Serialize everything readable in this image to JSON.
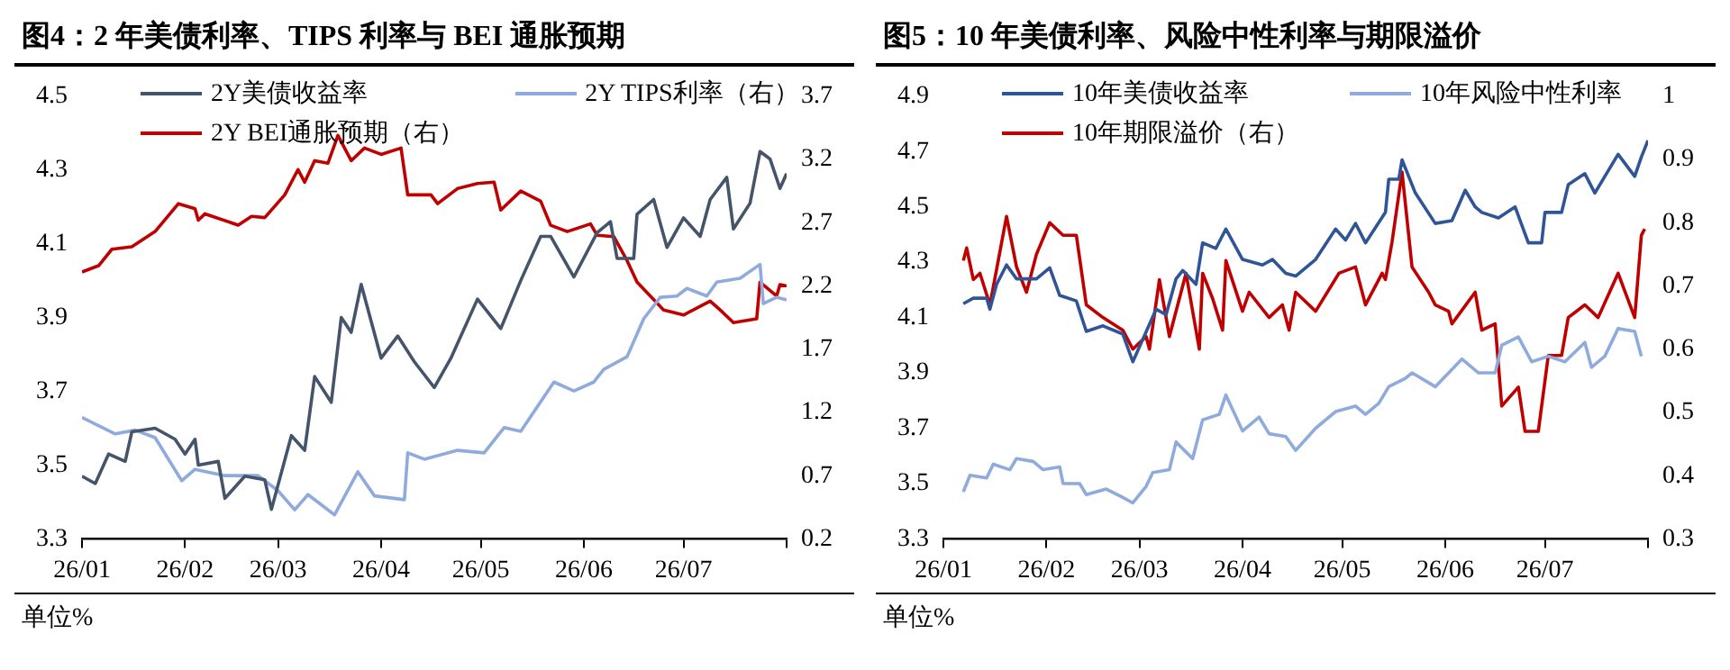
{
  "chart_data": [
    {
      "type": "line",
      "title": "图4：2 年美债利率、TIPS 利率与 BEI 通胀预期",
      "annotations": [
        "单位%"
      ],
      "legend": "top left",
      "xlim": [
        "--01-01",
        "--08-01"
      ],
      "xticks": [
        {
          "value": "--01-01",
          "label": "26/01"
        },
        {
          "value": "--02-01",
          "label": "26/02"
        },
        {
          "value": "--03-01",
          "label": "26/03"
        },
        {
          "value": "--04-01",
          "label": "26/04"
        },
        {
          "value": "--05-01",
          "label": "26/05"
        },
        {
          "value": "--06-01",
          "label": "26/06"
        },
        {
          "value": "--07-01",
          "label": "26/07"
        },
        {
          "value": "--08-01",
          "label": null
        }
      ],
      "ylim": [
        3.3,
        4.5
      ],
      "yticks": [
        3.3,
        3.5,
        3.7,
        3.9,
        4.1,
        4.3,
        4.5
      ],
      "y2lim": [
        0.2,
        3.7
      ],
      "y2ticks": [
        0.2,
        0.7,
        1.2,
        1.7,
        2.2,
        2.7,
        3.2,
        3.7
      ],
      "series": [
        {
          "name": "2Y美债收益率",
          "color": "#44546a",
          "x": [
            "--01-01",
            "--01-05",
            "--01-09",
            "--01-14",
            "--01-16",
            "--01-23",
            "--01-29",
            "--02-01",
            "--02-04",
            "--02-05",
            "--02-11",
            "--02-13",
            "--02-19",
            "--02-25",
            "--02-27",
            "--03-05",
            "--03-09",
            "--03-12",
            "--03-17",
            "--03-20",
            "--03-23",
            "--03-26",
            "--04-01",
            "--04-06",
            "--04-11",
            "--04-17",
            "--04-22",
            "--04-30",
            "--05-07",
            "--05-13",
            "--05-19",
            "--05-22",
            "--05-29",
            "--06-05",
            "--06-09",
            "--06-11",
            "--06-16",
            "--06-17",
            "--06-22",
            "--06-26",
            "--07-01",
            "--07-06",
            "--07-09",
            "--07-14",
            "--07-16",
            "--07-21",
            "--07-24",
            "--07-27",
            "--07-30",
            "--08-01"
          ],
          "values": [
            3.47,
            3.45,
            3.53,
            3.51,
            3.59,
            3.6,
            3.57,
            3.53,
            3.57,
            3.5,
            3.51,
            3.41,
            3.47,
            3.46,
            3.38,
            3.58,
            3.54,
            3.74,
            3.67,
            3.9,
            3.86,
            3.99,
            3.79,
            3.85,
            3.78,
            3.71,
            3.79,
            3.95,
            3.87,
            4.0,
            4.12,
            4.12,
            4.01,
            4.13,
            4.16,
            4.06,
            4.06,
            4.18,
            4.22,
            4.09,
            4.17,
            4.12,
            4.22,
            4.28,
            4.14,
            4.21,
            4.35,
            4.33,
            4.25,
            4.29
          ]
        },
        {
          "name": "2Y TIPS利率（右）",
          "color": "#8faadc",
          "axis": "y2",
          "x": [
            "--01-01",
            "--01-11",
            "--01-17",
            "--01-23",
            "--01-31",
            "--02-04",
            "--02-13",
            "--02-23",
            "--03-01",
            "--03-06",
            "--03-10",
            "--03-18",
            "--03-25",
            "--03-30",
            "--04-08",
            "--04-09",
            "--04-14",
            "--04-24",
            "--05-02",
            "--05-08",
            "--05-13",
            "--05-23",
            "--05-29",
            "--06-04",
            "--06-07",
            "--06-14",
            "--06-19",
            "--06-24",
            "--06-29",
            "--07-02",
            "--07-08",
            "--07-11",
            "--07-18",
            "--07-24",
            "--07-25",
            "--07-29",
            "--08-01"
          ],
          "values": [
            1.16,
            1.03,
            1.06,
            1.0,
            0.66,
            0.75,
            0.7,
            0.7,
            0.58,
            0.43,
            0.55,
            0.39,
            0.73,
            0.54,
            0.51,
            0.88,
            0.83,
            0.9,
            0.88,
            1.08,
            1.05,
            1.44,
            1.37,
            1.44,
            1.54,
            1.64,
            1.94,
            2.11,
            2.12,
            2.18,
            2.12,
            2.23,
            2.26,
            2.37,
            2.06,
            2.11,
            2.09
          ]
        },
        {
          "name": "2Y BEI通胀预期（右）",
          "color": "#c00000",
          "axis": "y2",
          "x": [
            "--01-01",
            "--01-06",
            "--01-10",
            "--01-16",
            "--01-23",
            "--01-30",
            "--02-04",
            "--02-05",
            "--02-07",
            "--02-17",
            "--02-21",
            "--02-25",
            "--03-03",
            "--03-07",
            "--03-09",
            "--03-12",
            "--03-16",
            "--03-19",
            "--03-23",
            "--03-27",
            "--04-01",
            "--04-07",
            "--04-09",
            "--04-16",
            "--04-18",
            "--04-24",
            "--04-30",
            "--05-05",
            "--05-07",
            "--05-13",
            "--05-19",
            "--05-22",
            "--05-27",
            "--06-03",
            "--06-05",
            "--06-10",
            "--06-14",
            "--06-17",
            "--06-25",
            "--07-01",
            "--07-09",
            "--07-12",
            "--07-16",
            "--07-23",
            "--07-24",
            "--07-29",
            "--07-30",
            "--08-01"
          ],
          "values": [
            2.31,
            2.36,
            2.49,
            2.51,
            2.63,
            2.85,
            2.81,
            2.72,
            2.77,
            2.68,
            2.75,
            2.74,
            2.92,
            3.12,
            3.02,
            3.19,
            3.17,
            3.39,
            3.19,
            3.29,
            3.24,
            3.29,
            2.92,
            2.92,
            2.85,
            2.97,
            3.01,
            3.02,
            2.8,
            2.95,
            2.87,
            2.68,
            2.63,
            2.69,
            2.6,
            2.59,
            2.4,
            2.23,
            2.01,
            1.97,
            2.08,
            2.01,
            1.91,
            1.94,
            2.23,
            2.12,
            2.21,
            2.2
          ]
        }
      ]
    },
    {
      "type": "line",
      "title": "图5：10 年美债利率、风险中性利率与期限溢价",
      "annotations": [
        "单位%"
      ],
      "legend": "top left",
      "xlim": [
        "--01-01",
        "--08-01"
      ],
      "xticks": [
        {
          "value": "--01-01",
          "label": "26/01"
        },
        {
          "value": "--02-01",
          "label": "26/02"
        },
        {
          "value": "--03-01",
          "label": "26/03"
        },
        {
          "value": "--04-01",
          "label": "26/04"
        },
        {
          "value": "--05-01",
          "label": "26/05"
        },
        {
          "value": "--06-01",
          "label": "26/06"
        },
        {
          "value": "--07-01",
          "label": "26/07"
        },
        {
          "value": "--08-01",
          "label": null
        }
      ],
      "ylim": [
        3.3,
        4.9
      ],
      "yticks": [
        3.3,
        3.5,
        3.7,
        3.9,
        4.1,
        4.3,
        4.5,
        4.7,
        4.9
      ],
      "y2lim": [
        0.3,
        1
      ],
      "y2ticks": [
        0.3,
        0.4,
        0.5,
        0.6,
        0.7,
        0.8,
        0.9,
        1
      ],
      "series": [
        {
          "name": "10年美债收益率",
          "color": "#2f5597",
          "x": [
            "--01-07",
            "--01-10",
            "--01-14",
            "--01-15",
            "--01-17",
            "--01-20",
            "--01-23",
            "--01-26",
            "--01-29",
            "--02-02",
            "--02-05",
            "--02-10",
            "--02-13",
            "--02-18",
            "--02-24",
            "--02-27",
            "--03-06",
            "--03-09",
            "--03-12",
            "--03-14",
            "--03-18",
            "--03-20",
            "--03-24",
            "--03-27",
            "--04-01",
            "--04-07",
            "--04-10",
            "--04-14",
            "--04-17",
            "--04-23",
            "--04-29",
            "--05-02",
            "--05-05",
            "--05-08",
            "--05-14",
            "--05-15",
            "--05-18",
            "--05-19",
            "--05-23",
            "--05-29",
            "--06-03",
            "--06-07",
            "--06-10",
            "--06-12",
            "--06-17",
            "--06-22",
            "--06-26",
            "--06-30",
            "--07-01",
            "--07-06",
            "--07-08",
            "--07-13",
            "--07-16",
            "--07-23",
            "--07-28",
            "--07-30",
            "--08-01"
          ],
          "values": [
            4.15,
            4.17,
            4.17,
            4.13,
            4.22,
            4.29,
            4.24,
            4.24,
            4.24,
            4.28,
            4.18,
            4.16,
            4.05,
            4.07,
            4.04,
            3.94,
            4.13,
            4.11,
            4.24,
            4.27,
            4.22,
            4.37,
            4.35,
            4.42,
            4.31,
            4.29,
            4.31,
            4.26,
            4.25,
            4.31,
            4.42,
            4.38,
            4.44,
            4.37,
            4.48,
            4.6,
            4.6,
            4.67,
            4.55,
            4.44,
            4.45,
            4.56,
            4.5,
            4.48,
            4.46,
            4.5,
            4.37,
            4.37,
            4.48,
            4.48,
            4.58,
            4.62,
            4.55,
            4.69,
            4.61,
            4.68,
            4.74
          ]
        },
        {
          "name": "10年风险中性利率",
          "color": "#8faadc",
          "x": [
            "--01-07",
            "--01-09",
            "--01-14",
            "--01-16",
            "--01-21",
            "--01-23",
            "--01-28",
            "--01-31",
            "--02-05",
            "--02-06",
            "--02-11",
            "--02-13",
            "--02-19",
            "--02-24",
            "--02-27",
            "--03-03",
            "--03-05",
            "--03-10",
            "--03-12",
            "--03-17",
            "--03-20",
            "--03-25",
            "--03-27",
            "--04-01",
            "--04-06",
            "--04-09",
            "--04-14",
            "--04-17",
            "--04-23",
            "--04-29",
            "--05-05",
            "--05-08",
            "--05-12",
            "--05-15",
            "--05-20",
            "--05-22",
            "--05-29",
            "--06-06",
            "--06-11",
            "--06-16",
            "--06-18",
            "--06-23",
            "--06-27",
            "--07-02",
            "--07-07",
            "--07-13",
            "--07-15",
            "--07-19",
            "--07-23",
            "--07-28",
            "--07-30"
          ],
          "values": [
            3.47,
            3.53,
            3.52,
            3.57,
            3.55,
            3.59,
            3.58,
            3.55,
            3.56,
            3.5,
            3.5,
            3.46,
            3.48,
            3.45,
            3.43,
            3.49,
            3.54,
            3.55,
            3.65,
            3.59,
            3.73,
            3.75,
            3.82,
            3.69,
            3.74,
            3.68,
            3.67,
            3.62,
            3.7,
            3.76,
            3.78,
            3.75,
            3.79,
            3.85,
            3.88,
            3.9,
            3.85,
            3.95,
            3.9,
            3.9,
            4.0,
            4.03,
            3.94,
            3.96,
            3.94,
            4.01,
            3.92,
            3.96,
            4.06,
            4.05,
            3.96
          ]
        },
        {
          "name": "10年期限溢价（右）",
          "color": "#c00000",
          "axis": "y2",
          "x": [
            "--01-07",
            "--01-08",
            "--01-10",
            "--01-12",
            "--01-15",
            "--01-20",
            "--01-23",
            "--01-26",
            "--01-29",
            "--02-02",
            "--02-06",
            "--02-10",
            "--02-13",
            "--02-18",
            "--02-24",
            "--02-27",
            "--03-03",
            "--03-04",
            "--03-07",
            "--03-10",
            "--03-15",
            "--03-19",
            "--03-20",
            "--03-23",
            "--03-26",
            "--03-27",
            "--04-01",
            "--04-03",
            "--04-09",
            "--04-13",
            "--04-15",
            "--04-17",
            "--04-23",
            "--04-30",
            "--05-05",
            "--05-08",
            "--05-13",
            "--05-14",
            "--05-16",
            "--05-19",
            "--05-22",
            "--05-27",
            "--05-29",
            "--06-02",
            "--06-03",
            "--06-10",
            "--06-12",
            "--06-16",
            "--06-18",
            "--06-23",
            "--06-25",
            "--06-29",
            "--07-02",
            "--07-06",
            "--07-08",
            "--07-13",
            "--07-17",
            "--07-23",
            "--07-28",
            "--07-30",
            "--07-31"
          ],
          "values": [
            0.74,
            0.76,
            0.71,
            0.72,
            0.67,
            0.81,
            0.73,
            0.69,
            0.75,
            0.8,
            0.78,
            0.78,
            0.67,
            0.65,
            0.63,
            0.6,
            0.62,
            0.6,
            0.71,
            0.62,
            0.72,
            0.6,
            0.72,
            0.68,
            0.63,
            0.74,
            0.66,
            0.69,
            0.65,
            0.67,
            0.63,
            0.69,
            0.66,
            0.72,
            0.73,
            0.67,
            0.72,
            0.71,
            0.77,
            0.88,
            0.73,
            0.69,
            0.67,
            0.66,
            0.64,
            0.69,
            0.63,
            0.64,
            0.51,
            0.54,
            0.47,
            0.47,
            0.59,
            0.59,
            0.65,
            0.67,
            0.65,
            0.72,
            0.65,
            0.78,
            0.79
          ]
        }
      ]
    }
  ]
}
